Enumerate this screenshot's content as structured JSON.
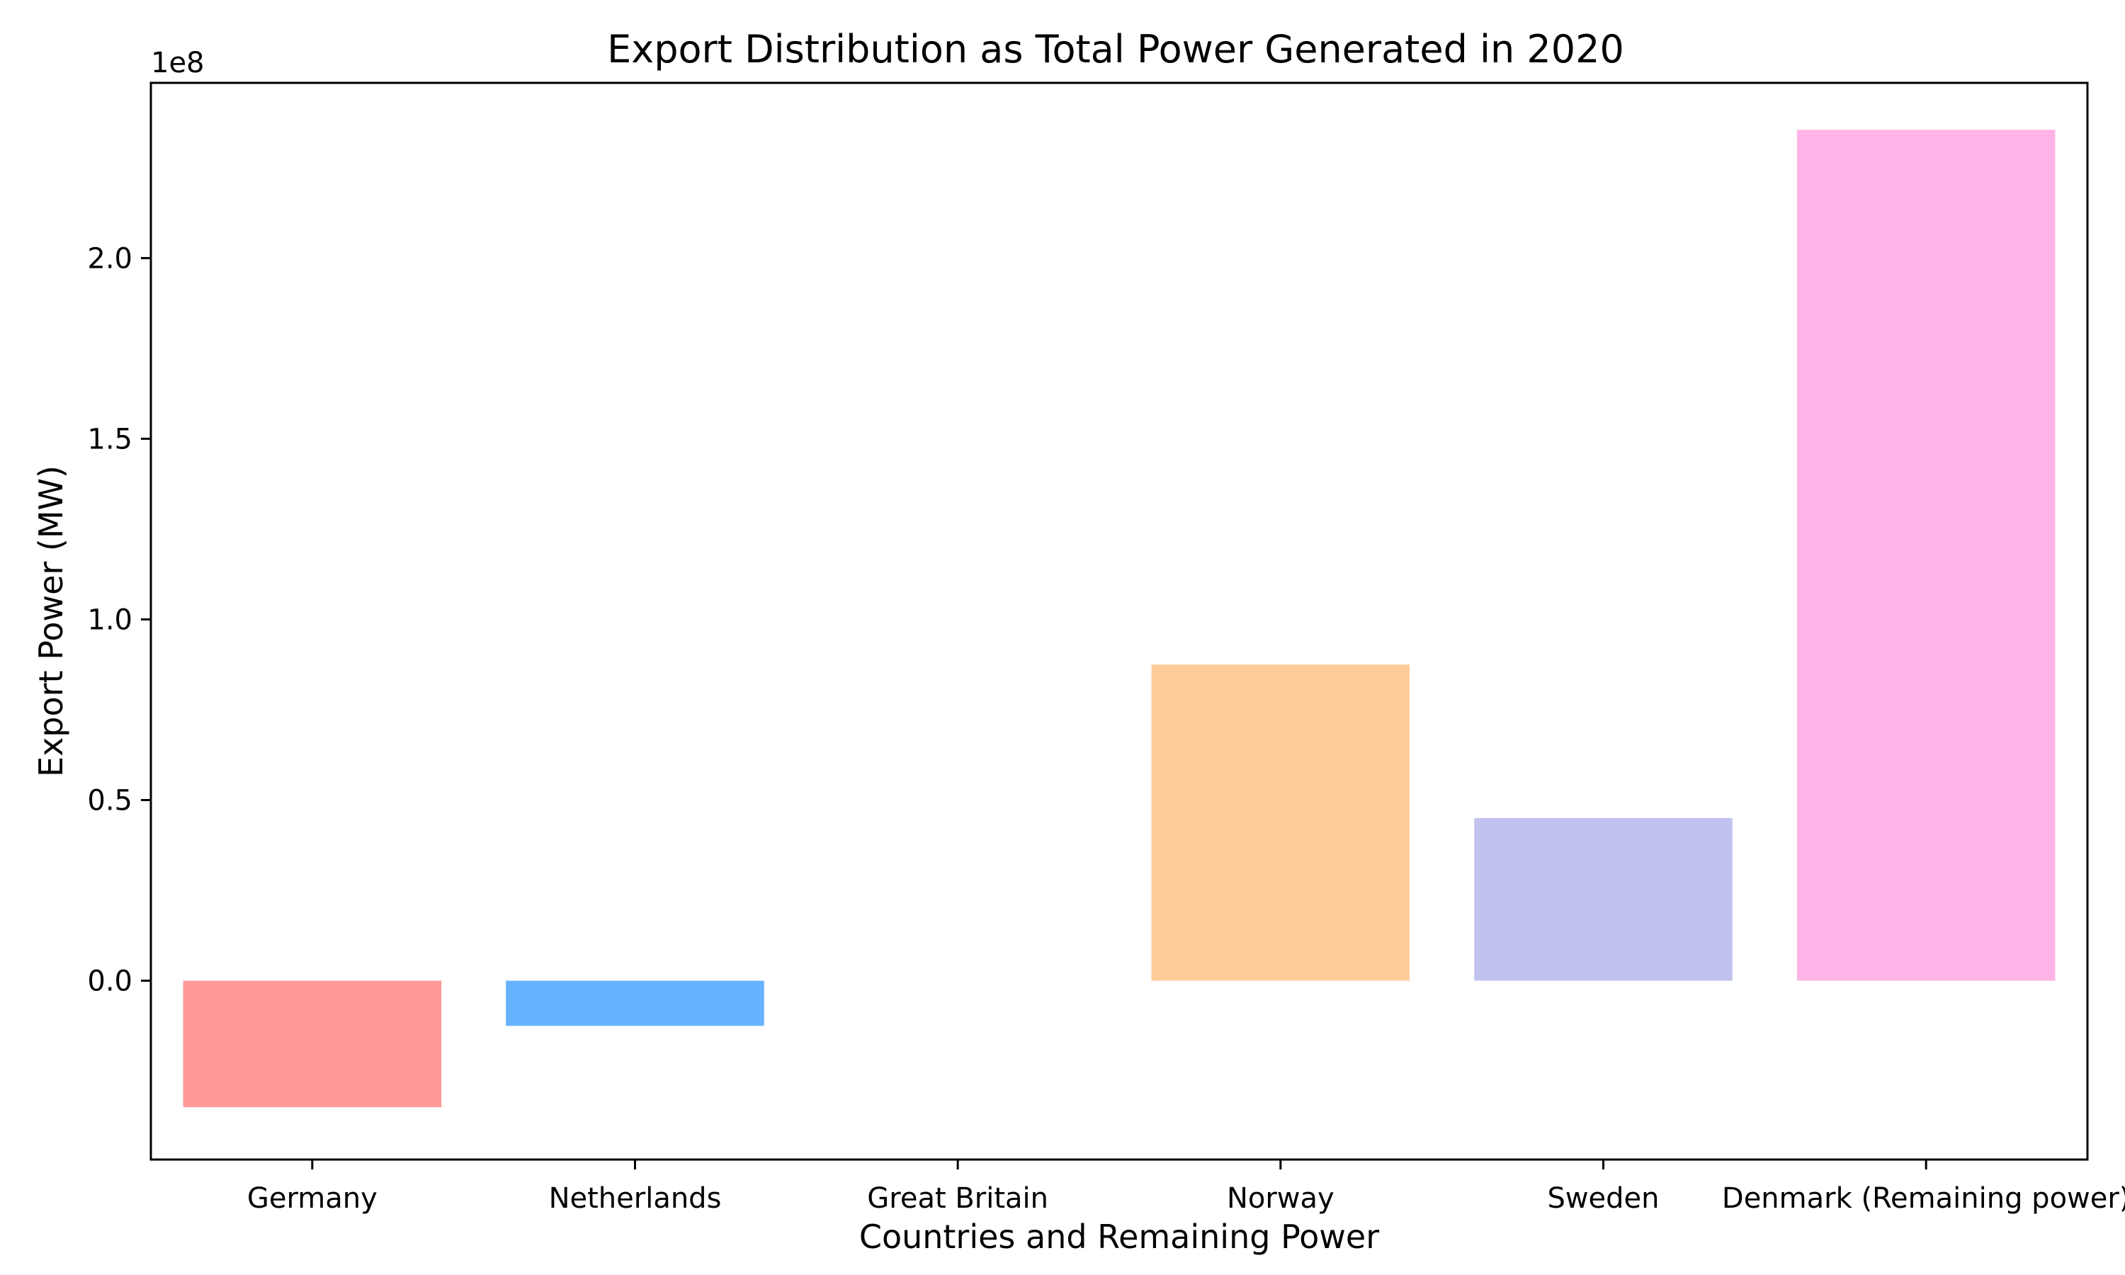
{
  "chart_data": {
    "type": "bar",
    "title": "Export Distribution as Total Power Generated in 2020",
    "xlabel": "Countries and Remaining Power",
    "ylabel": "Export Power (MW)",
    "y_offset_label": "1e8",
    "categories": [
      "Germany",
      "Netherlands",
      "Great Britain",
      "Norway",
      "Sweden",
      "Denmark (Remaining power)"
    ],
    "values": [
      -35000000,
      -12500000,
      0,
      87500000,
      45000000,
      235500000
    ],
    "colors": [
      "#ff9999",
      "#66b3ff",
      "#99ff99",
      "#ffcc99",
      "#c2c2f0",
      "#ffb3e6"
    ],
    "ylim": [
      -49500000,
      248500000
    ],
    "yticks": [
      0,
      50000000,
      100000000,
      150000000,
      200000000
    ],
    "ytick_labels": [
      "0.0",
      "0.5",
      "1.0",
      "1.5",
      "2.0"
    ],
    "grid": false,
    "legend": "none"
  }
}
